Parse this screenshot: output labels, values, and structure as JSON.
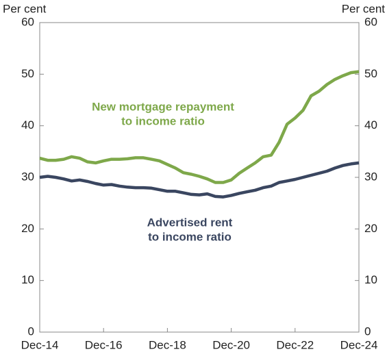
{
  "chart_data": {
    "type": "line",
    "y_label": "Per cent",
    "y2_label": "Per cent",
    "categories": [
      "Dec-14",
      null,
      null,
      null,
      null,
      null,
      null,
      null,
      "Dec-16",
      null,
      null,
      null,
      null,
      null,
      null,
      null,
      "Dec-18",
      null,
      null,
      null,
      null,
      null,
      null,
      null,
      "Dec-20",
      null,
      null,
      null,
      null,
      null,
      null,
      null,
      "Dec-22",
      null,
      null,
      null,
      null,
      null,
      null,
      null,
      "Dec-24"
    ],
    "series": [
      {
        "name": "New mortgage repayment to income ratio",
        "color": "#7ea84a",
        "values": [
          33.7,
          33.3,
          33.3,
          33.5,
          34.0,
          33.7,
          33.0,
          32.8,
          33.2,
          33.5,
          33.5,
          33.6,
          33.8,
          33.8,
          33.5,
          33.2,
          32.5,
          31.8,
          30.9,
          30.6,
          30.2,
          29.7,
          29.0,
          29.0,
          29.5,
          30.8,
          31.8,
          32.8,
          34.0,
          34.3,
          36.8,
          40.3,
          41.5,
          43.0,
          45.8,
          46.7,
          48.0,
          49.0,
          49.7,
          50.3,
          50.5
        ]
      },
      {
        "name": "Advertised rent to income ratio",
        "color": "#3a4660",
        "values": [
          30.0,
          30.2,
          30.0,
          29.7,
          29.3,
          29.5,
          29.2,
          28.8,
          28.5,
          28.6,
          28.3,
          28.1,
          28.0,
          28.0,
          27.9,
          27.6,
          27.3,
          27.3,
          27.0,
          26.7,
          26.6,
          26.8,
          26.3,
          26.2,
          26.5,
          26.9,
          27.2,
          27.5,
          28.0,
          28.3,
          29.0,
          29.3,
          29.6,
          30.0,
          30.4,
          30.8,
          31.2,
          31.8,
          32.3,
          32.6,
          32.8
        ]
      }
    ],
    "annotations": [
      {
        "lines": [
          "New mortgage repayment",
          "to income ratio"
        ],
        "color": "#7ea84a"
      },
      {
        "lines": [
          "Advertised rent",
          "to income ratio"
        ],
        "color": "#3a4660"
      }
    ],
    "ylim": [
      0,
      60
    ],
    "yticks": [
      0,
      10,
      20,
      30,
      40,
      50,
      60
    ],
    "y2lim": [
      0,
      60
    ],
    "y2ticks": [
      0,
      10,
      20,
      30,
      40,
      50,
      60
    ]
  }
}
